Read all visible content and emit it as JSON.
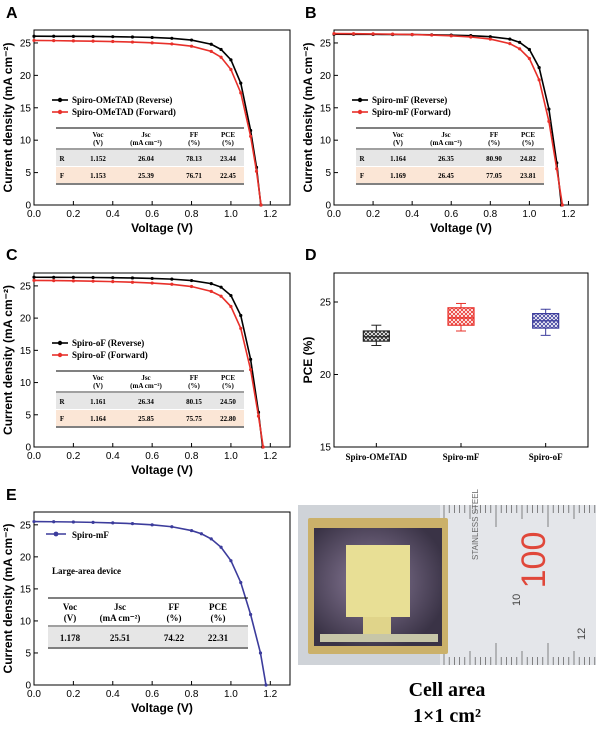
{
  "figure": {
    "axis_ticks": {
      "jv_x": [
        "0.0",
        "0.2",
        "0.4",
        "0.6",
        "0.8",
        "1.0",
        "1.2"
      ],
      "jv_y": [
        "0",
        "5",
        "10",
        "15",
        "20",
        "25"
      ],
      "pce_y": [
        "15",
        "20",
        "25"
      ]
    },
    "colors": {
      "reverse": "#000000",
      "forward": "#e8302a",
      "spiro_mF_large": "#3c3c9c",
      "row_r_bg": "#e6e6e6",
      "row_f_bg": "#fbe6d6"
    },
    "photo": {
      "ruler_label": "STAINLESS STEEL",
      "ruler_number": "100",
      "ruler_marks": [
        "10",
        "12"
      ],
      "caption_line1": "Cell area",
      "caption_line2": "1×1 cm²"
    }
  },
  "chart_data": [
    {
      "id": "A",
      "type": "line",
      "xlabel": "Voltage (V)",
      "ylabel": "Current density (mA cm⁻²)",
      "xlim": [
        0,
        1.3
      ],
      "ylim": [
        0,
        27
      ],
      "legend": "left",
      "series": [
        {
          "name": "Spiro-OMeTAD (Reverse)",
          "color": "#000000",
          "x": [
            0.0,
            0.1,
            0.2,
            0.3,
            0.4,
            0.5,
            0.6,
            0.7,
            0.8,
            0.9,
            0.95,
            1.0,
            1.05,
            1.1,
            1.13,
            1.152
          ],
          "y": [
            26.04,
            26.03,
            26.02,
            26.0,
            25.97,
            25.92,
            25.85,
            25.72,
            25.45,
            24.8,
            24.0,
            22.4,
            18.8,
            11.5,
            5.8,
            0.0
          ]
        },
        {
          "name": "Spiro-OMeTAD (Forward)",
          "color": "#e8302a",
          "x": [
            0.0,
            0.1,
            0.2,
            0.3,
            0.4,
            0.5,
            0.6,
            0.7,
            0.8,
            0.9,
            0.95,
            1.0,
            1.05,
            1.1,
            1.13,
            1.153
          ],
          "y": [
            25.39,
            25.36,
            25.32,
            25.28,
            25.22,
            25.14,
            25.02,
            24.85,
            24.5,
            23.7,
            22.8,
            20.9,
            17.3,
            10.6,
            5.2,
            0.0
          ]
        }
      ],
      "table": {
        "headers": [
          "Voc (V)",
          "Jsc (mA cm⁻²)",
          "FF (%)",
          "PCE (%)"
        ],
        "rows": [
          {
            "label": "R",
            "values": [
              "1.152",
              "26.04",
              "78.13",
              "23.44"
            ]
          },
          {
            "label": "F",
            "values": [
              "1.153",
              "25.39",
              "76.71",
              "22.45"
            ]
          }
        ]
      }
    },
    {
      "id": "B",
      "type": "line",
      "xlabel": "Voltage (V)",
      "ylabel": "Current density (mA cm⁻²)",
      "xlim": [
        0,
        1.3
      ],
      "ylim": [
        0,
        27
      ],
      "legend": "left",
      "series": [
        {
          "name": "Spiro-mF (Reverse)",
          "color": "#000000",
          "x": [
            0.0,
            0.1,
            0.2,
            0.3,
            0.4,
            0.5,
            0.6,
            0.7,
            0.8,
            0.9,
            0.95,
            1.0,
            1.05,
            1.1,
            1.14,
            1.164
          ],
          "y": [
            26.35,
            26.34,
            26.33,
            26.31,
            26.29,
            26.26,
            26.21,
            26.13,
            25.97,
            25.6,
            25.1,
            24.0,
            21.2,
            14.8,
            6.5,
            0.0
          ]
        },
        {
          "name": "Spiro-mF (Forward)",
          "color": "#e8302a",
          "x": [
            0.0,
            0.1,
            0.2,
            0.3,
            0.4,
            0.5,
            0.6,
            0.7,
            0.8,
            0.9,
            0.95,
            1.0,
            1.05,
            1.1,
            1.14,
            1.169
          ],
          "y": [
            26.45,
            26.43,
            26.4,
            26.36,
            26.3,
            26.22,
            26.1,
            25.92,
            25.6,
            24.9,
            24.1,
            22.6,
            19.3,
            12.9,
            5.6,
            0.0
          ]
        }
      ],
      "table": {
        "headers": [
          "Voc (V)",
          "Jsc (mA cm⁻²)",
          "FF (%)",
          "PCE (%)"
        ],
        "rows": [
          {
            "label": "R",
            "values": [
              "1.164",
              "26.35",
              "80.90",
              "24.82"
            ]
          },
          {
            "label": "F",
            "values": [
              "1.169",
              "26.45",
              "77.05",
              "23.81"
            ]
          }
        ]
      }
    },
    {
      "id": "C",
      "type": "line",
      "xlabel": "Voltage (V)",
      "ylabel": "Current density (mA cm⁻²)",
      "xlim": [
        0,
        1.3
      ],
      "ylim": [
        0,
        27
      ],
      "legend": "left",
      "series": [
        {
          "name": "Spiro-oF (Reverse)",
          "color": "#000000",
          "x": [
            0.0,
            0.1,
            0.2,
            0.3,
            0.4,
            0.5,
            0.6,
            0.7,
            0.8,
            0.9,
            0.95,
            1.0,
            1.05,
            1.1,
            1.14,
            1.161
          ],
          "y": [
            26.34,
            26.33,
            26.32,
            26.3,
            26.27,
            26.23,
            26.16,
            26.05,
            25.83,
            25.35,
            24.8,
            23.5,
            20.4,
            13.6,
            5.4,
            0.0
          ]
        },
        {
          "name": "Spiro-oF (Forward)",
          "color": "#e8302a",
          "x": [
            0.0,
            0.1,
            0.2,
            0.3,
            0.4,
            0.5,
            0.6,
            0.7,
            0.8,
            0.9,
            0.95,
            1.0,
            1.05,
            1.1,
            1.14,
            1.164
          ],
          "y": [
            25.85,
            25.82,
            25.78,
            25.73,
            25.66,
            25.57,
            25.44,
            25.25,
            24.9,
            24.15,
            23.4,
            21.8,
            18.4,
            12.0,
            4.8,
            0.0
          ]
        }
      ],
      "table": {
        "headers": [
          "Voc (V)",
          "Jsc (mA cm⁻²)",
          "FF (%)",
          "PCE (%)"
        ],
        "rows": [
          {
            "label": "R",
            "values": [
              "1.161",
              "26.34",
              "80.15",
              "24.50"
            ]
          },
          {
            "label": "F",
            "values": [
              "1.164",
              "25.85",
              "75.75",
              "22.80"
            ]
          }
        ]
      }
    },
    {
      "id": "D",
      "type": "box",
      "xlabel": "",
      "ylabel": "PCE (%)",
      "ylim": [
        15,
        27
      ],
      "categories": [
        "Spiro-OMeTAD",
        "Spiro-mF",
        "Spiro-oF"
      ],
      "boxes": [
        {
          "name": "Spiro-OMeTAD",
          "color": "#222222",
          "min": 22.0,
          "q1": 22.3,
          "median": 22.6,
          "q3": 23.0,
          "max": 23.4
        },
        {
          "name": "Spiro-mF",
          "color": "#e8302a",
          "min": 23.0,
          "q1": 23.4,
          "median": 23.9,
          "q3": 24.6,
          "max": 24.9
        },
        {
          "name": "Spiro-oF",
          "color": "#3c3c9c",
          "min": 22.7,
          "q1": 23.2,
          "median": 23.7,
          "q3": 24.2,
          "max": 24.5
        }
      ]
    },
    {
      "id": "E",
      "type": "line",
      "xlabel": "Voltage (V)",
      "ylabel": "Current density (mA cm⁻²)",
      "xlim": [
        0,
        1.3
      ],
      "ylim": [
        0,
        27
      ],
      "legend": "top-left",
      "title_inset": "Large-area device",
      "series": [
        {
          "name": "Spiro-mF",
          "color": "#3c3c9c",
          "x": [
            0.0,
            0.1,
            0.2,
            0.3,
            0.4,
            0.5,
            0.6,
            0.7,
            0.8,
            0.85,
            0.9,
            0.95,
            1.0,
            1.05,
            1.1,
            1.15,
            1.178
          ],
          "y": [
            25.51,
            25.48,
            25.44,
            25.38,
            25.3,
            25.18,
            25.0,
            24.7,
            24.1,
            23.6,
            22.8,
            21.5,
            19.4,
            16.0,
            11.0,
            5.0,
            0.0
          ]
        }
      ],
      "table": {
        "headers": [
          "Voc (V)",
          "Jsc (mA cm⁻²)",
          "FF (%)",
          "PCE (%)"
        ],
        "rows": [
          {
            "label": "",
            "values": [
              "1.178",
              "25.51",
              "74.22",
              "22.31"
            ]
          }
        ]
      }
    }
  ]
}
